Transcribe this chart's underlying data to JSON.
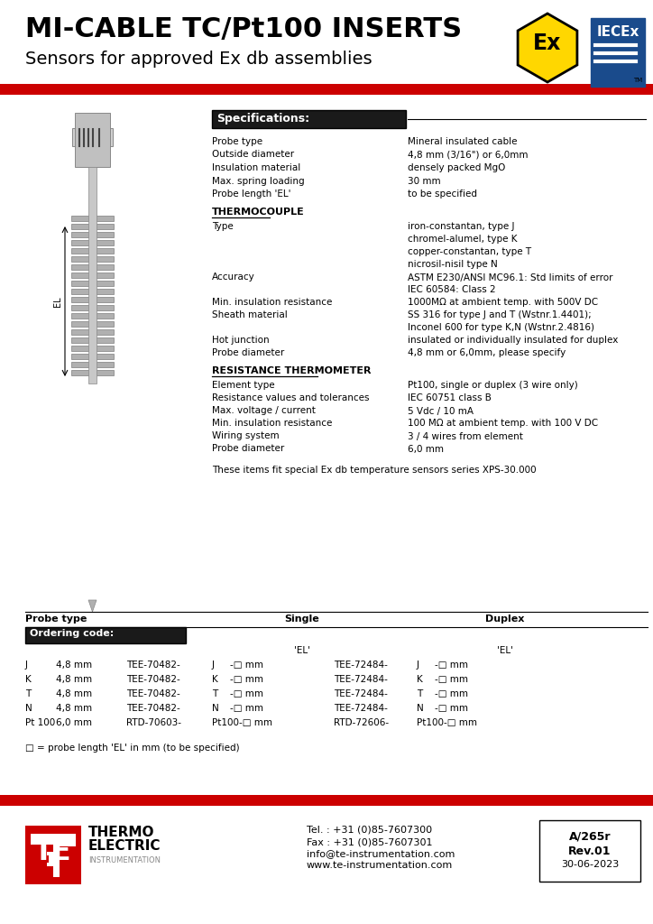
{
  "title_line1": "MI-CABLE TC/Pt100 INSERTS",
  "title_line2": "Sensors for approved Ex db assemblies",
  "red_bar_color": "#CC0000",
  "header_bg": "#1a1a1a",
  "header_text": "Specifications:",
  "specs": [
    [
      "Probe type",
      "Mineral insulated cable"
    ],
    [
      "Outside diameter",
      "4,8 mm (3/16\") or 6,0mm"
    ],
    [
      "Insulation material",
      "densely packed MgO"
    ],
    [
      "Max. spring loading",
      "30 mm"
    ],
    [
      "Probe length 'EL'",
      "to be specified"
    ]
  ],
  "tc_header": "THERMOCOUPLE",
  "tc_specs": [
    [
      "Type",
      "iron-constantan, type J"
    ],
    [
      "",
      "chromel-alumel, type K"
    ],
    [
      "",
      "copper-constantan, type T"
    ],
    [
      "",
      "nicrosil-nisil type N"
    ],
    [
      "Accuracy",
      "ASTM E230/ANSI MC96.1: Std limits of error"
    ],
    [
      "",
      "IEC 60584: Class 2"
    ],
    [
      "Min. insulation resistance",
      "1000MΩ at ambient temp. with 500V DC"
    ],
    [
      "Sheath material",
      "SS 316 for type J and T (Wstnr.1.4401);"
    ],
    [
      "",
      "Inconel 600 for type K,N (Wstnr.2.4816)"
    ],
    [
      "Hot junction",
      "insulated or individually insulated for duplex"
    ],
    [
      "Probe diameter",
      "4,8 mm or 6,0mm, please specify"
    ]
  ],
  "rt_header": "RESISTANCE THERMOMETER",
  "rt_specs": [
    [
      "Element type",
      "Pt100, single or duplex (3 wire only)"
    ],
    [
      "Resistance values and tolerances",
      "IEC 60751 class B"
    ],
    [
      "Max. voltage / current",
      "5 Vdc / 10 mA"
    ],
    [
      "Min. insulation resistance",
      "100 MΩ at ambient temp. with 100 V DC"
    ],
    [
      "Wiring system",
      "3 / 4 wires from element"
    ],
    [
      "Probe diameter",
      "6,0 mm"
    ]
  ],
  "note": "These items fit special Ex db temperature sensors series XPS-30.000",
  "ordering_header": "Ordering code:",
  "probe_type_label": "Probe type",
  "single_label": "Single",
  "duplex_label": "Duplex",
  "ordering_rows": [
    [
      "J",
      "4,8 mm",
      "TEE-70482-",
      "J",
      "-□ mm",
      "TEE-72484-",
      "J",
      "-□ mm"
    ],
    [
      "K",
      "4,8 mm",
      "TEE-70482-",
      "K",
      "-□ mm",
      "TEE-72484-",
      "K",
      "-□ mm"
    ],
    [
      "T",
      "4,8 mm",
      "TEE-70482-",
      "T",
      "-□ mm",
      "TEE-72484-",
      "T",
      "-□ mm"
    ],
    [
      "N",
      "4,8 mm",
      "TEE-70482-",
      "N",
      "-□ mm",
      "TEE-72484-",
      "N",
      "-□ mm"
    ],
    [
      "Pt 100",
      "6,0 mm",
      "RTD-70603-",
      "Pt100-□ mm",
      "",
      "RTD-72606-",
      "Pt100-□ mm",
      ""
    ]
  ],
  "legend_text": "□ = probe length 'EL' in mm (to be specified)",
  "footer_tel": "Tel. : +31 (0)85-7607300",
  "footer_fax": "Fax : +31 (0)85-7607301",
  "footer_email": "info@te-instrumentation.com",
  "footer_web": "www.te-instrumentation.com",
  "footer_code": "A/265r",
  "footer_rev": "Rev.01",
  "footer_date": "30-06-2023",
  "bg_color": "#ffffff"
}
